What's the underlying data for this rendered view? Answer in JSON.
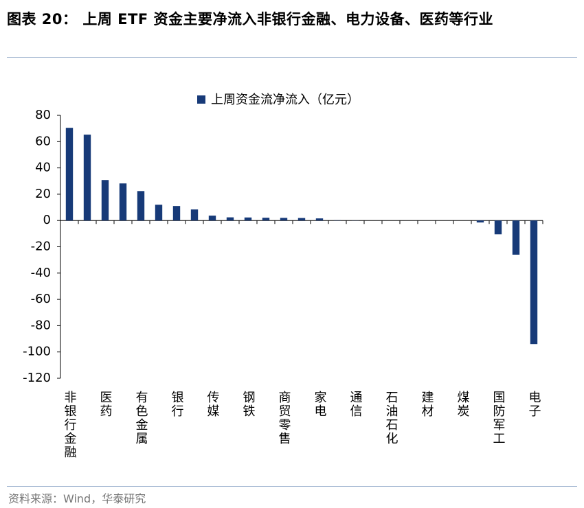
{
  "header": {
    "title": "图表 20：  上周 ETF 资金主要净流入非银行金融、电力设备、医药等行业"
  },
  "chart_data": {
    "type": "bar",
    "legend": "上周资金流净流入（亿元）",
    "color": "#173a78",
    "categories": [
      "非银行金融",
      null,
      "医药",
      null,
      "有色金属",
      null,
      "银行",
      null,
      "传媒",
      null,
      "钢铁",
      null,
      "商贸零售",
      null,
      "家电",
      null,
      "通信",
      null,
      "石油石化",
      null,
      "建材",
      null,
      "煤炭",
      null,
      "国防军工",
      null,
      "电子"
    ],
    "values": [
      70.5,
      65.3,
      30.8,
      28.2,
      22.4,
      12,
      11,
      8.4,
      3.7,
      2.4,
      2.3,
      2.1,
      2,
      1.9,
      1.6,
      0.2,
      0.1,
      0,
      0,
      0,
      0,
      0,
      0,
      -1.5,
      -10.5,
      -26,
      -94
    ],
    "ylim": [
      -120,
      80
    ],
    "yticks": [
      -120,
      -100,
      -80,
      -60,
      -40,
      -20,
      0,
      20,
      40,
      60,
      80
    ]
  },
  "footer": {
    "source": "资料来源：Wind，华泰研究"
  }
}
